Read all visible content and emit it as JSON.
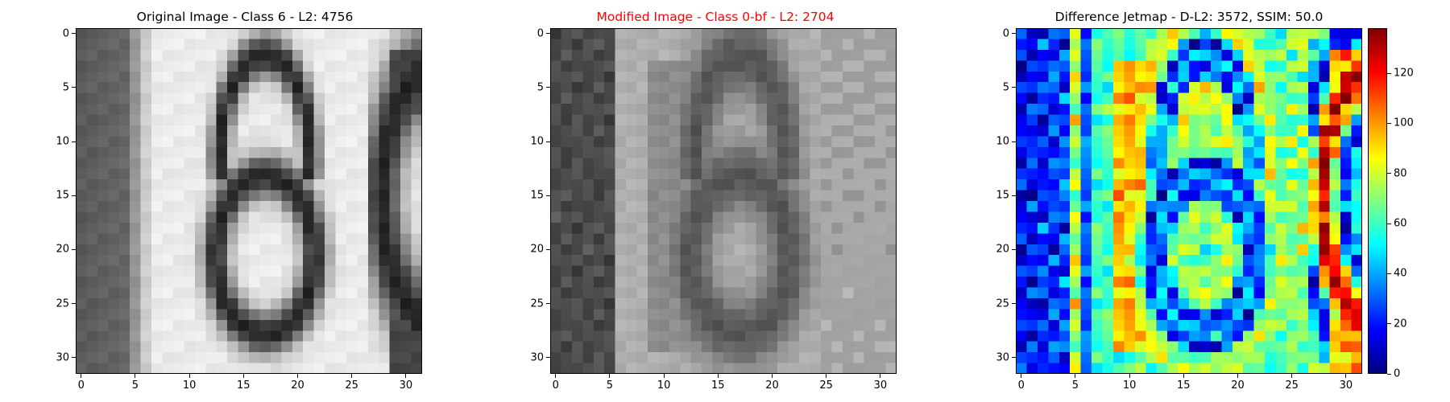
{
  "figure": {
    "panels": [
      {
        "id": "original",
        "title": "Original Image - Class 6 - L2: 4756",
        "title_color": "#000000",
        "colormap": "gray"
      },
      {
        "id": "modified",
        "title": "Modified Image - Class 0-bf - L2: 2704",
        "title_color": "#ff0000",
        "colormap": "gray"
      },
      {
        "id": "difference",
        "title": "Difference Jetmap - D-L2: 3572, SSIM: 50.0",
        "title_color": "#000000",
        "colormap": "jet"
      }
    ],
    "x_ticks": [
      "0",
      "5",
      "10",
      "15",
      "20",
      "25",
      "30"
    ],
    "y_ticks": [
      "0",
      "5",
      "10",
      "15",
      "20",
      "25",
      "30"
    ],
    "colorbar": {
      "ticks": [
        "0",
        "20",
        "40",
        "60",
        "80",
        "100",
        "120"
      ],
      "range": [
        0,
        138
      ]
    }
  },
  "chart_data": [
    {
      "type": "heatmap",
      "title": "Original Image - Class 6 - L2: 4756",
      "grid_size": [
        32,
        32
      ],
      "xlim": [
        -0.5,
        31.5
      ],
      "ylim": [
        31.5,
        -0.5
      ],
      "content": "grayscale digit '6' with partial '6' at right edge"
    },
    {
      "type": "heatmap",
      "title": "Modified Image - Class 0-bf - L2: 2704",
      "grid_size": [
        32,
        32
      ],
      "xlim": [
        -0.5,
        31.5
      ],
      "ylim": [
        31.5,
        -0.5
      ],
      "content": "blurred grayscale digit shape"
    },
    {
      "type": "heatmap",
      "title": "Difference Jetmap - D-L2: 3572, SSIM: 50.0",
      "grid_size": [
        32,
        32
      ],
      "xlim": [
        -0.5,
        31.5
      ],
      "ylim": [
        31.5,
        -0.5
      ],
      "colorbar_range": [
        0,
        138
      ],
      "colormap": "jet"
    }
  ]
}
